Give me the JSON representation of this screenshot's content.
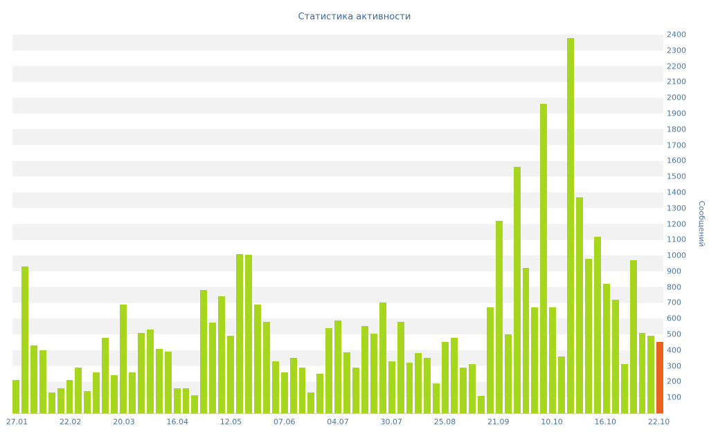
{
  "chart_data": {
    "type": "bar",
    "title": "Статистика активности",
    "ylabel": "Сообщений",
    "xlabel": "",
    "ylim": [
      0,
      2400
    ],
    "y_tick_step": 100,
    "grid": "horizontal-stripes-per-100",
    "legend": "none",
    "x_tick_labels": [
      "27.01",
      "22.02",
      "20.03",
      "16.04",
      "12.05",
      "07.06",
      "04.07",
      "30.07",
      "25.08",
      "21.09",
      "10.10",
      "16.10",
      "22.10"
    ],
    "x_ticks_every_n_bars": 6,
    "values": [
      210,
      930,
      430,
      400,
      130,
      160,
      210,
      290,
      140,
      260,
      480,
      240,
      690,
      260,
      510,
      530,
      410,
      390,
      160,
      160,
      115,
      780,
      575,
      740,
      490,
      1010,
      1005,
      690,
      580,
      330,
      260,
      350,
      290,
      130,
      250,
      540,
      590,
      385,
      290,
      555,
      505,
      700,
      330,
      580,
      320,
      380,
      350,
      190,
      450,
      480,
      290,
      310,
      110,
      670,
      1220,
      500,
      1560,
      920,
      670,
      1960,
      670,
      360,
      2380,
      1370,
      980,
      1120,
      820,
      720,
      310,
      970,
      510,
      490,
      450
    ],
    "highlight_last_bar": true,
    "colors": {
      "bar": "#a6d71e",
      "highlight_bar": "#e8621d",
      "text": "#4a76a4",
      "title_text": "#3f68a0",
      "stripe": "#f2f2f2",
      "axis_line": "#cccccc",
      "background": "#ffffff"
    }
  }
}
